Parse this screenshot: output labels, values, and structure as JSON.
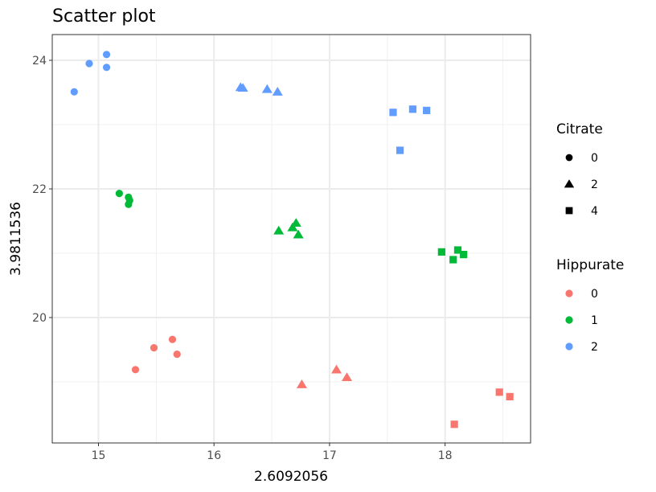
{
  "chart_data": {
    "type": "scatter",
    "title": "Scatter plot",
    "xlabel": "2.6092056",
    "ylabel": "3.9811536",
    "xlim": [
      14.6,
      18.74
    ],
    "ylim": [
      18.05,
      24.4
    ],
    "x_ticks": [
      15,
      16,
      17,
      18
    ],
    "y_ticks": [
      20,
      22,
      24
    ],
    "x_tick_labels": [
      "15",
      "16",
      "17",
      "18"
    ],
    "y_tick_labels": [
      "20",
      "22",
      "24"
    ],
    "grid": true,
    "legend_position": "right",
    "shape_legend": {
      "title": "Citrate",
      "entries": [
        {
          "label": "0",
          "shape": "circle"
        },
        {
          "label": "2",
          "shape": "triangle"
        },
        {
          "label": "4",
          "shape": "square"
        }
      ]
    },
    "color_legend": {
      "title": "Hippurate",
      "entries": [
        {
          "label": "0",
          "color": "#F8766D"
        },
        {
          "label": "1",
          "color": "#00BA38"
        },
        {
          "label": "2",
          "color": "#619CFF"
        }
      ]
    },
    "series": [
      {
        "hippurate": "2",
        "citrate": "0",
        "points": [
          [
            14.79,
            23.51
          ],
          [
            14.92,
            23.95
          ],
          [
            15.07,
            23.89
          ],
          [
            15.07,
            24.09
          ]
        ]
      },
      {
        "hippurate": "2",
        "citrate": "2",
        "points": [
          [
            16.23,
            23.58
          ],
          [
            16.25,
            23.57
          ],
          [
            16.46,
            23.55
          ],
          [
            16.55,
            23.51
          ]
        ]
      },
      {
        "hippurate": "2",
        "citrate": "4",
        "points": [
          [
            17.55,
            23.19
          ],
          [
            17.72,
            23.24
          ],
          [
            17.84,
            23.22
          ],
          [
            17.61,
            22.6
          ]
        ]
      },
      {
        "hippurate": "1",
        "citrate": "0",
        "points": [
          [
            15.18,
            21.93
          ],
          [
            15.26,
            21.87
          ],
          [
            15.27,
            21.82
          ],
          [
            15.26,
            21.76
          ]
        ]
      },
      {
        "hippurate": "1",
        "citrate": "2",
        "points": [
          [
            16.56,
            21.35
          ],
          [
            16.68,
            21.4
          ],
          [
            16.71,
            21.47
          ],
          [
            16.73,
            21.29
          ]
        ]
      },
      {
        "hippurate": "1",
        "citrate": "4",
        "points": [
          [
            17.97,
            21.02
          ],
          [
            18.11,
            21.05
          ],
          [
            18.07,
            20.9
          ],
          [
            18.16,
            20.98
          ]
        ]
      },
      {
        "hippurate": "0",
        "citrate": "0",
        "points": [
          [
            15.32,
            19.19
          ],
          [
            15.48,
            19.53
          ],
          [
            15.64,
            19.66
          ],
          [
            15.68,
            19.43
          ]
        ]
      },
      {
        "hippurate": "0",
        "citrate": "2",
        "points": [
          [
            16.76,
            18.96
          ],
          [
            17.06,
            19.19
          ],
          [
            17.15,
            19.07
          ]
        ]
      },
      {
        "hippurate": "0",
        "citrate": "4",
        "points": [
          [
            18.08,
            18.34
          ],
          [
            18.47,
            18.84
          ],
          [
            18.56,
            18.77
          ]
        ]
      }
    ]
  }
}
